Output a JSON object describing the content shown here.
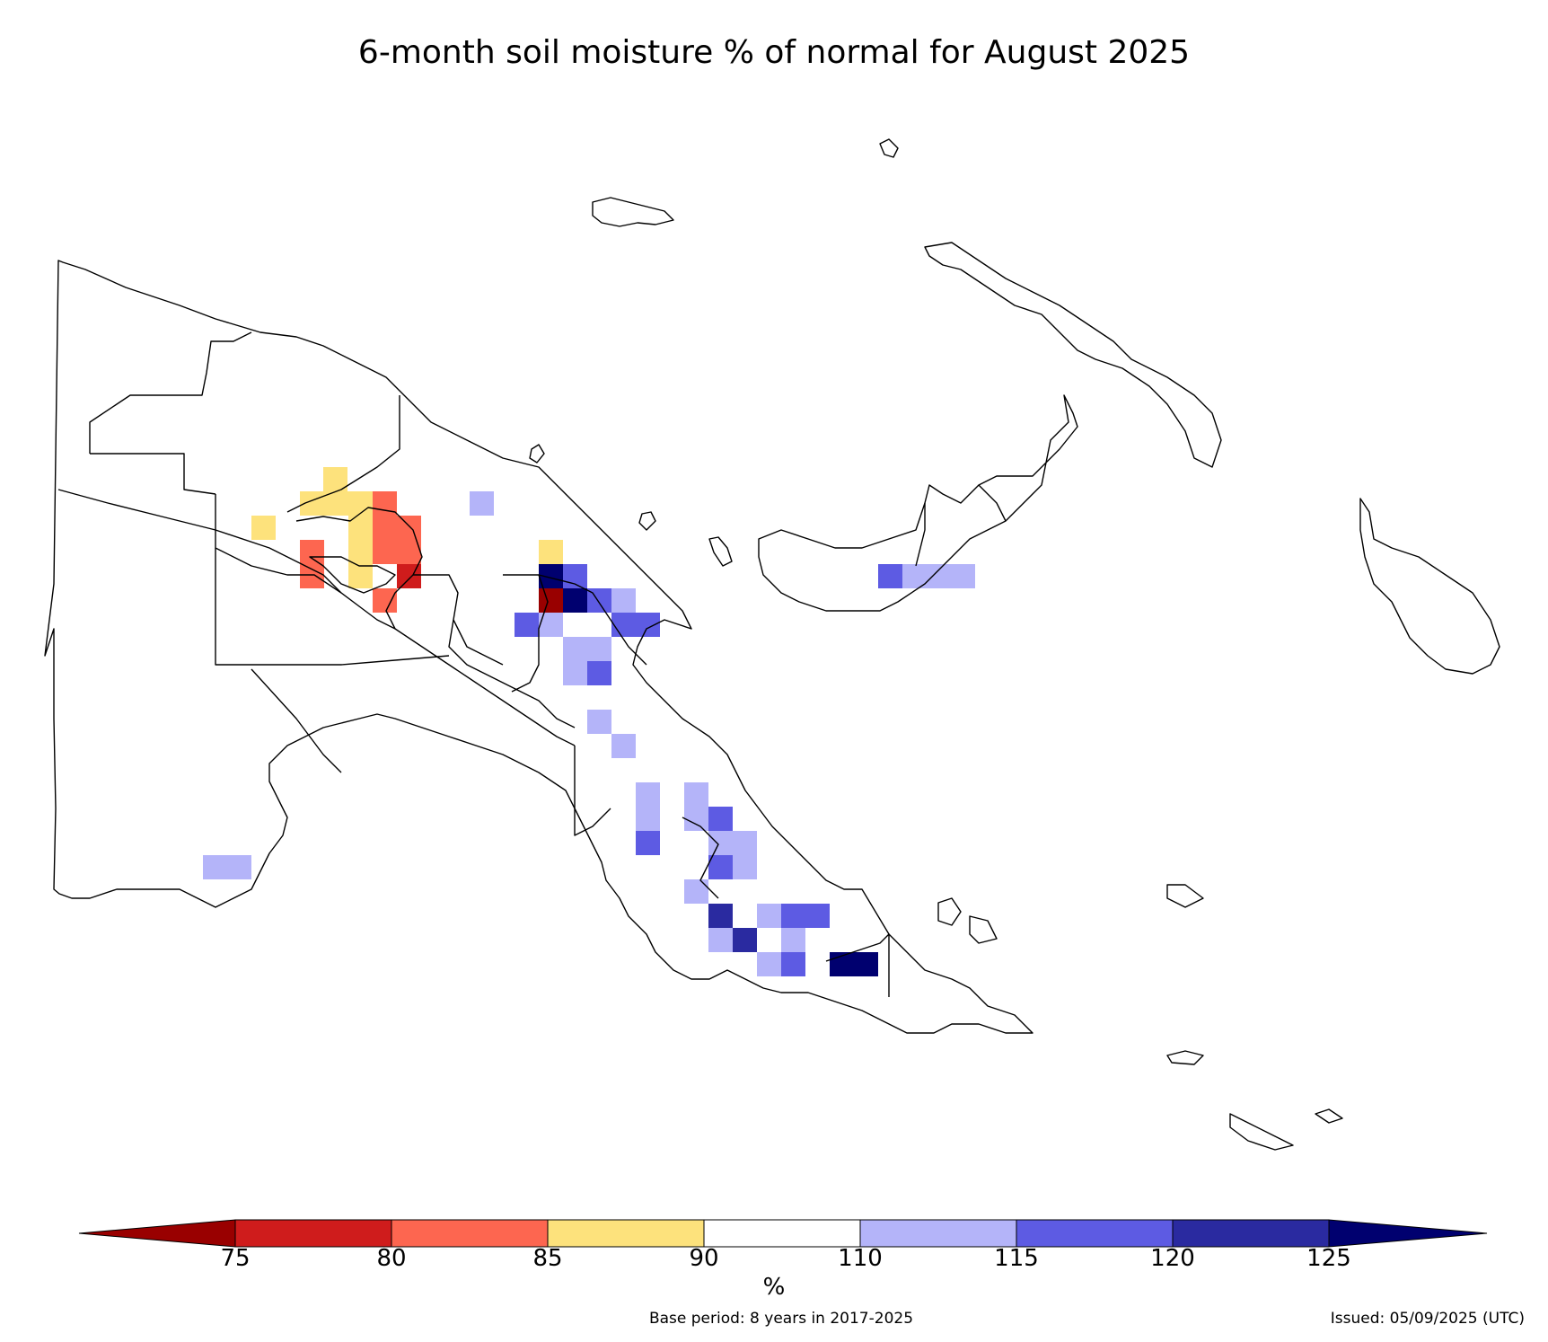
{
  "title": "6-month soil moisture % of normal for August 2025",
  "units": "%",
  "base_period": "Base period: 8 years in 2017-2025",
  "issued": "Issued: 05/09/2025 (UTC)",
  "colorbar": {
    "ticks": [
      "75",
      "80",
      "85",
      "90",
      "110",
      "115",
      "120",
      "125"
    ],
    "bins": [
      {
        "range": "<75",
        "color": "#990000"
      },
      {
        "range": "75-80",
        "color": "#cf1c1c"
      },
      {
        "range": "80-85",
        "color": "#fd6650"
      },
      {
        "range": "85-90",
        "color": "#fde27c"
      },
      {
        "range": "90-110",
        "color": "#ffffff"
      },
      {
        "range": "110-115",
        "color": "#b4b4f9"
      },
      {
        "range": "115-120",
        "color": "#5d5be3"
      },
      {
        "range": "120-125",
        "color": "#2a2aa0"
      },
      {
        "range": ">125",
        "color": "#00006f"
      }
    ]
  }
}
